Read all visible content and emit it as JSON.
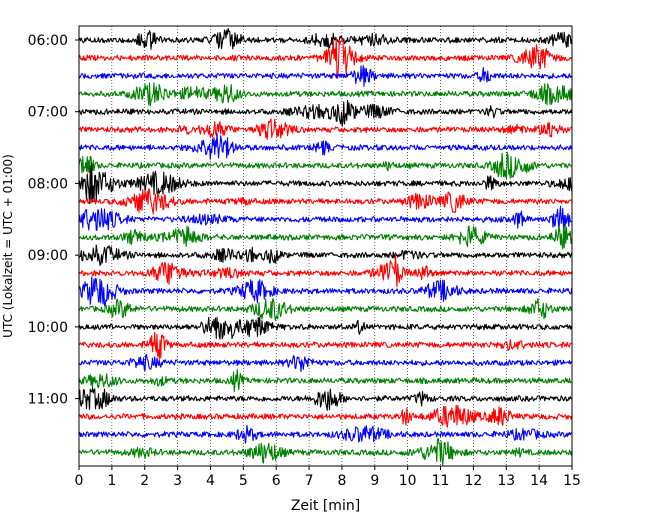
{
  "chart_data": {
    "type": "line",
    "subtype": "helicorder",
    "xlabel": "Zeit  [min]",
    "ylabel": "UTC (Lokalzeit = UTC + 01:00)",
    "xlim": [
      0,
      15
    ],
    "x_ticks": [
      "0",
      "1",
      "2",
      "3",
      "4",
      "5",
      "6",
      "7",
      "8",
      "9",
      "10",
      "11",
      "12",
      "13",
      "14",
      "15"
    ],
    "y_tick_labels": [
      "06:00",
      "07:00",
      "08:00",
      "09:00",
      "10:00",
      "11:00"
    ],
    "rows_per_hour": 4,
    "row_count": 24,
    "row_start_times": [
      "06:00",
      "06:15",
      "06:30",
      "06:45",
      "07:00",
      "07:15",
      "07:30",
      "07:45",
      "08:00",
      "08:15",
      "08:30",
      "08:45",
      "09:00",
      "09:15",
      "09:30",
      "09:45",
      "10:00",
      "10:15",
      "10:30",
      "10:45",
      "11:00",
      "11:15",
      "11:30",
      "11:45"
    ],
    "trace_colors": [
      "#000000",
      "#ff0000",
      "#0000ff",
      "#008000"
    ],
    "grid": "vertical dotted",
    "legend": "none"
  }
}
